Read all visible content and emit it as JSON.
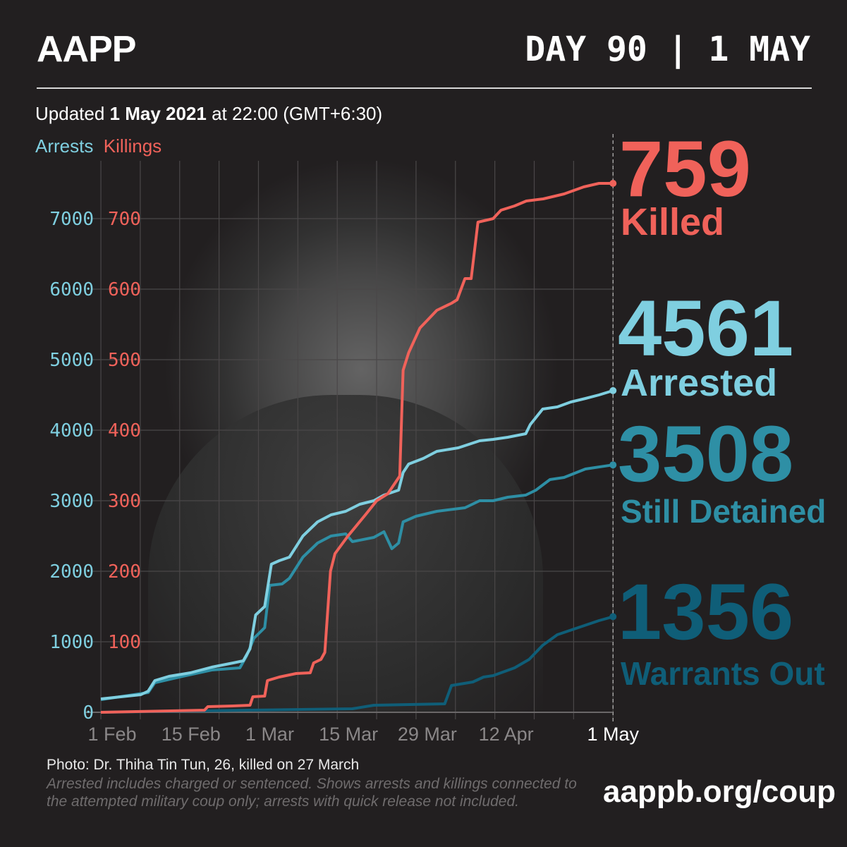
{
  "header": {
    "logo": "AAPP",
    "day_label": "DAY 90 | 1 MAY"
  },
  "updated": {
    "prefix": "Updated ",
    "date": "1 May 2021",
    "suffix": " at 22:00 (GMT+6:30)"
  },
  "colors": {
    "killings": "#f0625a",
    "arrests": "#7fcfe0",
    "detained": "#2e8fa5",
    "warrants": "#0f5e78"
  },
  "totals": {
    "killed": {
      "value": "759",
      "label": "Killed"
    },
    "arrested": {
      "value": "4561",
      "label": "Arrested"
    },
    "detained": {
      "value": "3508",
      "label": "Still Detained"
    },
    "warrants": {
      "value": "1356",
      "label": "Warrants Out"
    }
  },
  "footer": {
    "photo_credit": "Photo: Dr. Thiha Tin Tun, 26, killed on 27 March",
    "note": "Arrested includes charged or sentenced. Shows arrests and killings connected to the attempted military coup only; arrests with quick release not included.",
    "url": "aappb.org/coup"
  },
  "chart_data": {
    "type": "line",
    "title": "",
    "legend": [
      "Arrests",
      "Killings"
    ],
    "legend_placement": "top-left",
    "xlabel": "",
    "ylabel_left": "Arrests",
    "ylabel_right": "Killings",
    "x_unit": "days since 1 Feb 2021",
    "xlim": [
      -2,
      89
    ],
    "x_ticks": [
      {
        "day": 0,
        "label": "1 Feb"
      },
      {
        "day": 14,
        "label": "15 Feb"
      },
      {
        "day": 28,
        "label": "1 Mar"
      },
      {
        "day": 42,
        "label": "15 Mar"
      },
      {
        "day": 56,
        "label": "29 Mar"
      },
      {
        "day": 70,
        "label": "12 Apr"
      },
      {
        "day": 89,
        "label": "1 May"
      }
    ],
    "y_arrests_ticks": [
      0,
      1000,
      2000,
      3000,
      4000,
      5000,
      6000,
      7000
    ],
    "y_killings_ticks": [
      100,
      200,
      300,
      400,
      500,
      600,
      700
    ],
    "ylim_arrests": [
      0,
      7600
    ],
    "ylim_killings": [
      0,
      760
    ],
    "grid": true,
    "series": [
      {
        "name": "Killings",
        "axis": "killings",
        "points": [
          [
            -2,
            0
          ],
          [
            16.4,
            3
          ],
          [
            17,
            8
          ],
          [
            21.5,
            9
          ],
          [
            24.5,
            10
          ],
          [
            25,
            22
          ],
          [
            27.1,
            23
          ],
          [
            27.6,
            45
          ],
          [
            29.7,
            50
          ],
          [
            32.7,
            55
          ],
          [
            35.2,
            56
          ],
          [
            35.8,
            70
          ],
          [
            37.1,
            75
          ],
          [
            37.8,
            85
          ],
          [
            38.8,
            200
          ],
          [
            39.6,
            225
          ],
          [
            41.9,
            250
          ],
          [
            45,
            280
          ],
          [
            47,
            300
          ],
          [
            49,
            310
          ],
          [
            51.1,
            335
          ],
          [
            51.7,
            485
          ],
          [
            52.7,
            510
          ],
          [
            54.7,
            545
          ],
          [
            55.9,
            555
          ],
          [
            57.7,
            570
          ],
          [
            60.3,
            580
          ],
          [
            61.3,
            585
          ],
          [
            62.7,
            615
          ],
          [
            63.8,
            615
          ],
          [
            65,
            695
          ],
          [
            67.7,
            700
          ],
          [
            69.1,
            712
          ],
          [
            71.5,
            718
          ],
          [
            73.6,
            725
          ],
          [
            76.6,
            728
          ],
          [
            80.3,
            735
          ],
          [
            83.8,
            745
          ],
          [
            86.5,
            750
          ],
          [
            89,
            750
          ]
        ]
      },
      {
        "name": "Arrests",
        "axis": "arrests",
        "points": [
          [
            -2,
            190
          ],
          [
            5.1,
            250
          ],
          [
            6.4,
            300
          ],
          [
            7.6,
            450
          ],
          [
            10.1,
            510
          ],
          [
            13.9,
            560
          ],
          [
            17.7,
            640
          ],
          [
            21.5,
            700
          ],
          [
            23.3,
            730
          ],
          [
            24.5,
            900
          ],
          [
            25.5,
            1380
          ],
          [
            27.1,
            1500
          ],
          [
            28.3,
            2100
          ],
          [
            29.7,
            2150
          ],
          [
            31.5,
            2200
          ],
          [
            33.9,
            2500
          ],
          [
            36.5,
            2700
          ],
          [
            38.9,
            2800
          ],
          [
            41.5,
            2850
          ],
          [
            44,
            2950
          ],
          [
            46.5,
            3000
          ],
          [
            48.3,
            3080
          ],
          [
            50.9,
            3150
          ],
          [
            51.7,
            3400
          ],
          [
            52.7,
            3520
          ],
          [
            55.3,
            3600
          ],
          [
            57.7,
            3700
          ],
          [
            61.5,
            3750
          ],
          [
            65.3,
            3850
          ],
          [
            67.7,
            3870
          ],
          [
            70.3,
            3900
          ],
          [
            73.5,
            3950
          ],
          [
            74.3,
            4080
          ],
          [
            76.5,
            4300
          ],
          [
            79.1,
            4330
          ],
          [
            81.5,
            4400
          ],
          [
            84.1,
            4450
          ],
          [
            86.5,
            4500
          ],
          [
            89,
            4561
          ]
        ]
      },
      {
        "name": "Still Detained",
        "axis": "arrests",
        "points": [
          [
            -2,
            180
          ],
          [
            6.4,
            280
          ],
          [
            7.6,
            420
          ],
          [
            11.4,
            490
          ],
          [
            17.7,
            600
          ],
          [
            22.7,
            630
          ],
          [
            23.9,
            800
          ],
          [
            25.2,
            1050
          ],
          [
            27.1,
            1200
          ],
          [
            28,
            1800
          ],
          [
            30.2,
            1820
          ],
          [
            31.5,
            1900
          ],
          [
            33.9,
            2200
          ],
          [
            36.5,
            2400
          ],
          [
            38.9,
            2500
          ],
          [
            41.5,
            2530
          ],
          [
            42.7,
            2420
          ],
          [
            46.5,
            2480
          ],
          [
            48.3,
            2560
          ],
          [
            49.7,
            2320
          ],
          [
            50.9,
            2400
          ],
          [
            51.7,
            2700
          ],
          [
            54,
            2780
          ],
          [
            57.7,
            2850
          ],
          [
            62.7,
            2900
          ],
          [
            65.3,
            3000
          ],
          [
            67.7,
            3000
          ],
          [
            70.3,
            3050
          ],
          [
            73.5,
            3080
          ],
          [
            75.3,
            3150
          ],
          [
            77.8,
            3300
          ],
          [
            80.3,
            3330
          ],
          [
            84.1,
            3450
          ],
          [
            89,
            3508
          ]
        ]
      },
      {
        "name": "Warrants Out",
        "axis": "arrests",
        "points": [
          [
            -2,
            0
          ],
          [
            23.9,
            30
          ],
          [
            42.7,
            50
          ],
          [
            46.5,
            100
          ],
          [
            59.1,
            120
          ],
          [
            60.3,
            380
          ],
          [
            64.1,
            430
          ],
          [
            66,
            500
          ],
          [
            67.7,
            520
          ],
          [
            71.5,
            630
          ],
          [
            74.1,
            750
          ],
          [
            76.5,
            950
          ],
          [
            79.1,
            1100
          ],
          [
            82.8,
            1200
          ],
          [
            86.5,
            1300
          ],
          [
            89,
            1356
          ]
        ]
      }
    ]
  }
}
